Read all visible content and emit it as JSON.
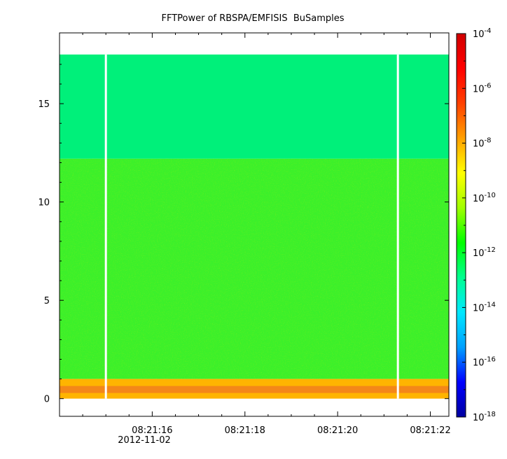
{
  "chart_data": {
    "type": "heatmap",
    "title": "FFTPower of RBSPA/EMFISIS  BuSamples",
    "xlabel": "",
    "ylabel": "",
    "x_tick_labels": [
      "08:21:16",
      "08:21:18",
      "08:21:20",
      "08:21:22"
    ],
    "x_date_label": "2012-11-02",
    "x_range_seconds": [
      "08:21:14.0",
      "08:21:22.4"
    ],
    "y_ticks": [
      0,
      5,
      10,
      15
    ],
    "ylim": [
      -0.9,
      18.6
    ],
    "data_ylim": [
      0,
      17.5
    ],
    "band_edges": {
      "intense_band_top": 1.0,
      "lower_band_top": 12.2
    },
    "data_gaps_time": [
      "08:21:15.0",
      "08:21:21.3"
    ],
    "colorbar": {
      "scale": "log",
      "range": [
        1e-18,
        0.0001
      ],
      "tick_labels": [
        {
          "base": "10",
          "exp": "-4"
        },
        {
          "base": "10",
          "exp": "-6"
        },
        {
          "base": "10",
          "exp": "-8"
        },
        {
          "base": "10",
          "exp": "-10"
        },
        {
          "base": "10",
          "exp": "-12"
        },
        {
          "base": "10",
          "exp": "-14"
        },
        {
          "base": "10",
          "exp": "-16"
        },
        {
          "base": "10",
          "exp": "-18"
        }
      ],
      "tick_values": [
        -4,
        -6,
        -8,
        -10,
        -12,
        -14,
        -16,
        -18
      ],
      "colors": [
        "#0000a0",
        "#0000ff",
        "#00a0ff",
        "#00e8ff",
        "#00ff90",
        "#00ff00",
        "#a0ff00",
        "#ffff00",
        "#ffa000",
        "#ff4000",
        "#ff0000",
        "#d00000"
      ]
    },
    "fill_colors": {
      "upper_band": "#00f07a",
      "lower_band": "#3cf02a",
      "intense_band": "#ffb400",
      "intense_core": "#f07820",
      "chorus_tone": "#f0a020"
    }
  }
}
